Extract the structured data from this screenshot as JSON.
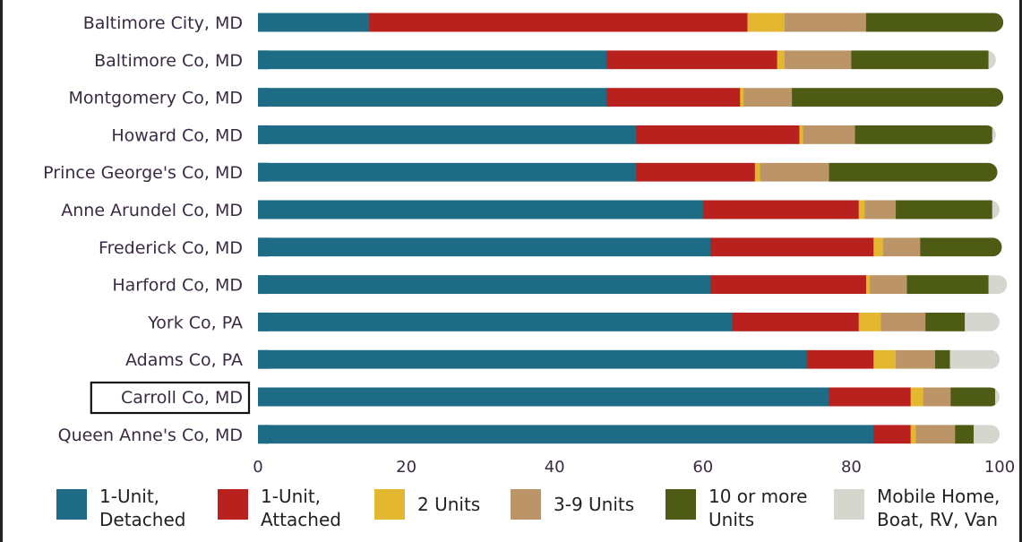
{
  "chart_data": {
    "type": "bar",
    "orientation": "horizontal",
    "stacked": true,
    "categories": [
      "Baltimore City, MD",
      "Baltimore Co, MD",
      "Montgomery Co, MD",
      "Howard Co, MD",
      "Prince George's Co, MD",
      "Anne Arundel Co, MD",
      "Frederick Co, MD",
      "Harford Co, MD",
      "York Co, PA",
      "Adams Co, PA",
      "Carroll Co, MD",
      "Queen Anne's Co, MD"
    ],
    "highlighted_category": "Carroll Co, MD",
    "series": [
      {
        "name": "1-Unit, Detached",
        "color": "#1d6b85",
        "values": [
          15,
          47,
          47,
          51,
          51,
          60,
          61,
          61,
          64,
          74,
          77,
          83
        ]
      },
      {
        "name": "1-Unit, Attached",
        "color": "#b8211e",
        "values": [
          51,
          23,
          18,
          22,
          16,
          21,
          22,
          21,
          17,
          9,
          11,
          5
        ]
      },
      {
        "name": "2 Units",
        "color": "#e3b730",
        "values": [
          5,
          1,
          0.5,
          0.5,
          0.7,
          0.8,
          1.3,
          0.5,
          3,
          3,
          1.7,
          0.7
        ]
      },
      {
        "name": "3-9 Units",
        "color": "#bb9567",
        "values": [
          11,
          9,
          6.5,
          7,
          9.3,
          4.2,
          5,
          5,
          6,
          5.3,
          3.7,
          5.3
        ]
      },
      {
        "name": "10 or more Units",
        "color": "#4e5b14",
        "values": [
          18.5,
          18.5,
          28.5,
          18.5,
          22.7,
          13,
          11,
          11,
          5.3,
          2,
          6,
          2.5
        ]
      },
      {
        "name": "Mobile Home, Boat, RV, Van",
        "color": "#d5d7cf",
        "values": [
          0,
          1,
          0,
          0.5,
          0,
          1,
          0,
          2.5,
          4.7,
          6.7,
          0.6,
          3.5
        ]
      }
    ],
    "legend_labels": [
      [
        "1-Unit,",
        "Detached"
      ],
      [
        "1-Unit,",
        "Attached"
      ],
      [
        "2 Units"
      ],
      [
        "3-9 Units"
      ],
      [
        "10 or more",
        "Units"
      ],
      [
        "Mobile Home,",
        "Boat, RV, Van"
      ]
    ],
    "xlim": [
      0,
      100
    ],
    "xticks": [
      "0",
      "20",
      "40",
      "60",
      "80",
      "100"
    ],
    "title": "",
    "xlabel": "",
    "ylabel": "",
    "legend_position": "bottom",
    "grid": false
  }
}
